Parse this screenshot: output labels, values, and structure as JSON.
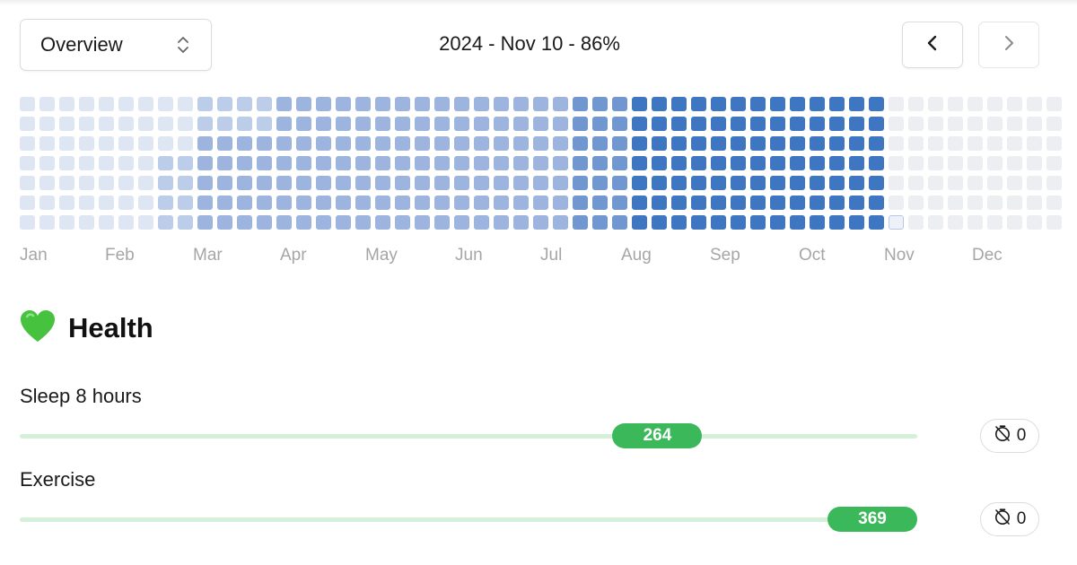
{
  "header": {
    "view_select": {
      "value": "Overview"
    },
    "period_label": "2024 - Nov 10 - 86%"
  },
  "calendar": {
    "year": 2024,
    "months": [
      "Jan",
      "Feb",
      "Mar",
      "Apr",
      "May",
      "Jun",
      "Jul",
      "Aug",
      "Sep",
      "Oct",
      "Nov",
      "Dec"
    ],
    "today_label": "Nov 10",
    "progress_percent": 86,
    "colors": {
      "empty": "#edeef2",
      "level_1": "#dfe6f3",
      "level_2": "#bccde9",
      "level_3": "#9cb4de",
      "level_4": "#7197d0",
      "level_5": "#3f76c1"
    }
  },
  "section": {
    "emoji_icon": "green-heart-icon",
    "title": "Health"
  },
  "habits": [
    {
      "name": "Sleep 8 hours",
      "streak_label": "264 days",
      "streak_days": 264,
      "skip_count": "0"
    },
    {
      "name": "Exercise",
      "streak_label": "369 days",
      "streak_days": 369,
      "skip_count": "0"
    }
  ]
}
